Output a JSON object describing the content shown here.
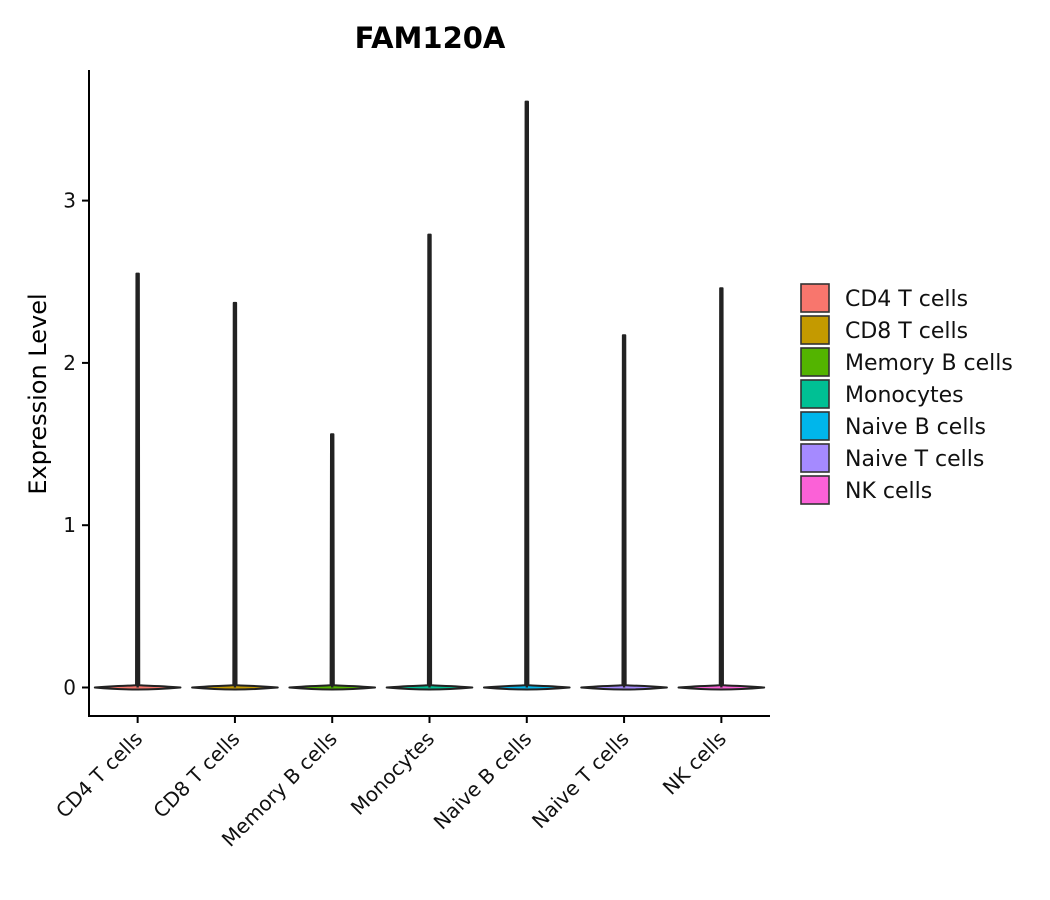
{
  "chart_data": {
    "type": "violin",
    "title": "FAM120A",
    "xlabel": "",
    "ylabel": "Expression Level",
    "ylim": [
      -0.18,
      3.8
    ],
    "yticks": [
      0,
      1,
      2,
      3
    ],
    "categories": [
      "CD4 T cells",
      "CD8 T cells",
      "Memory B cells",
      "Monocytes",
      "Naive B cells",
      "Naive T cells",
      "NK cells"
    ],
    "max_values": [
      2.55,
      2.37,
      1.56,
      2.79,
      3.61,
      2.17,
      2.46
    ],
    "legend": {
      "placement": "right",
      "entries": [
        {
          "label": "CD4 T cells",
          "color": "#F8766D"
        },
        {
          "label": "CD8 T cells",
          "color": "#C49A00"
        },
        {
          "label": "Memory B cells",
          "color": "#53B400"
        },
        {
          "label": "Monocytes",
          "color": "#00C094"
        },
        {
          "label": "Naive B cells",
          "color": "#00B6EB"
        },
        {
          "label": "Naive T cells",
          "color": "#A58AFF"
        },
        {
          "label": "NK cells",
          "color": "#FB61D7"
        }
      ]
    }
  }
}
